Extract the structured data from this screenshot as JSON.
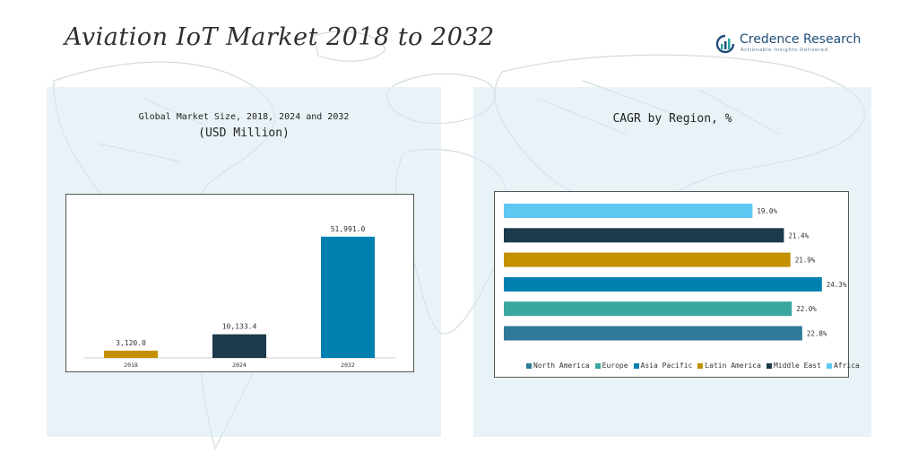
{
  "page": {
    "title": "Aviation IoT Market 2018 to 2032",
    "brand": {
      "name": "Credence Research",
      "tagline": "Actionable Insights Delivered"
    }
  },
  "chart_data": [
    {
      "type": "bar",
      "title": "Global Market Size, 2018, 2024 and 2032",
      "subtitle": "(USD Million)",
      "categories": [
        "2018",
        "2024",
        "2032"
      ],
      "values": [
        3120.0,
        10133.4,
        51991.0
      ],
      "value_labels": [
        "3,120.0",
        "10,133.4",
        "51,991.0"
      ],
      "colors": [
        "#c49102",
        "#1b3a4b",
        "#0080b0"
      ],
      "ylim": [
        0,
        60000
      ],
      "grid": false
    },
    {
      "type": "bar",
      "orientation": "horizontal",
      "title": "CAGR by Region, %",
      "categories": [
        "Africa",
        "Middle East",
        "Latin America",
        "Asia Pacific",
        "Europe",
        "North America"
      ],
      "values": [
        19.0,
        21.4,
        21.9,
        24.3,
        22.0,
        22.8
      ],
      "value_labels": [
        "19.0%",
        "21.4%",
        "21.9%",
        "24.3%",
        "22.0%",
        "22.8%"
      ],
      "colors": [
        "#5fc8f2",
        "#1b3a4b",
        "#c49102",
        "#0080b0",
        "#3aa6a0",
        "#2f7a9a"
      ],
      "legend": [
        "North America",
        "Europe",
        "Asia Pacific",
        "Latin America",
        "Middle East",
        "Africa"
      ],
      "legend_colors": [
        "#2f7a9a",
        "#3aa6a0",
        "#0080b0",
        "#c49102",
        "#1b3a4b",
        "#5fc8f2"
      ],
      "legend_position": "bottom",
      "xlim": [
        0,
        25
      ],
      "grid": false
    }
  ]
}
